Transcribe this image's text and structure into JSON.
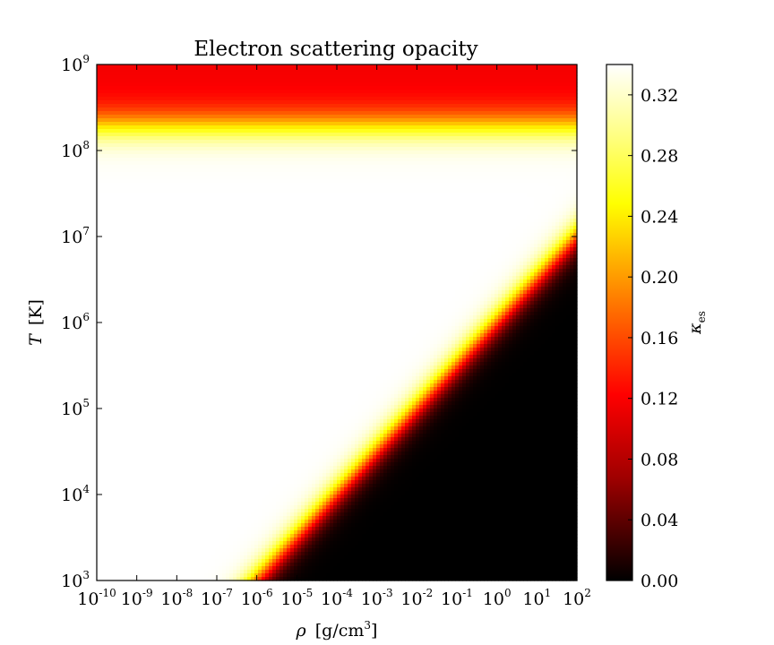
{
  "chart_data": {
    "type": "heatmap",
    "title": "Electron scattering opacity",
    "xlabel": {
      "symbol": "ρ",
      "unit_base": "[g/cm",
      "unit_sup": "3",
      "unit_end": "]"
    },
    "ylabel": {
      "symbol": "T",
      "unit": "[K]"
    },
    "x_scale": "log",
    "y_scale": "log",
    "xlim": [
      1e-10,
      100.0
    ],
    "ylim": [
      1000.0,
      1000000000.0
    ],
    "x_ticks": [
      {
        "base": "10",
        "exp": "-10"
      },
      {
        "base": "10",
        "exp": "-9"
      },
      {
        "base": "10",
        "exp": "-8"
      },
      {
        "base": "10",
        "exp": "-7"
      },
      {
        "base": "10",
        "exp": "-6"
      },
      {
        "base": "10",
        "exp": "-5"
      },
      {
        "base": "10",
        "exp": "-4"
      },
      {
        "base": "10",
        "exp": "-3"
      },
      {
        "base": "10",
        "exp": "-2"
      },
      {
        "base": "10",
        "exp": "-1"
      },
      {
        "base": "10",
        "exp": "0"
      },
      {
        "base": "10",
        "exp": "1"
      },
      {
        "base": "10",
        "exp": "2"
      }
    ],
    "y_ticks": [
      {
        "base": "10",
        "exp": "3"
      },
      {
        "base": "10",
        "exp": "4"
      },
      {
        "base": "10",
        "exp": "5"
      },
      {
        "base": "10",
        "exp": "6"
      },
      {
        "base": "10",
        "exp": "7"
      },
      {
        "base": "10",
        "exp": "8"
      },
      {
        "base": "10",
        "exp": "9"
      }
    ],
    "colorbar": {
      "label_symbol": "κ",
      "label_sub": "es",
      "range": [
        0.0,
        0.34
      ],
      "ticks": [
        "0.00",
        "0.04",
        "0.08",
        "0.12",
        "0.16",
        "0.20",
        "0.24",
        "0.28",
        "0.32"
      ],
      "tick_values": [
        0.0,
        0.04,
        0.08,
        0.12,
        0.16,
        0.2,
        0.24,
        0.28,
        0.32
      ],
      "colormap": "hot"
    },
    "field": {
      "kappa_max": 0.34,
      "hot_cutoff_log_T": 8.3,
      "hot_width_dex": 0.45,
      "ionization_boundary": {
        "log_T_at_log_rho_minus6": 3.0,
        "log_T_at_log_rho_2": 7.0
      },
      "ionization_width_dex": 0.45
    }
  }
}
